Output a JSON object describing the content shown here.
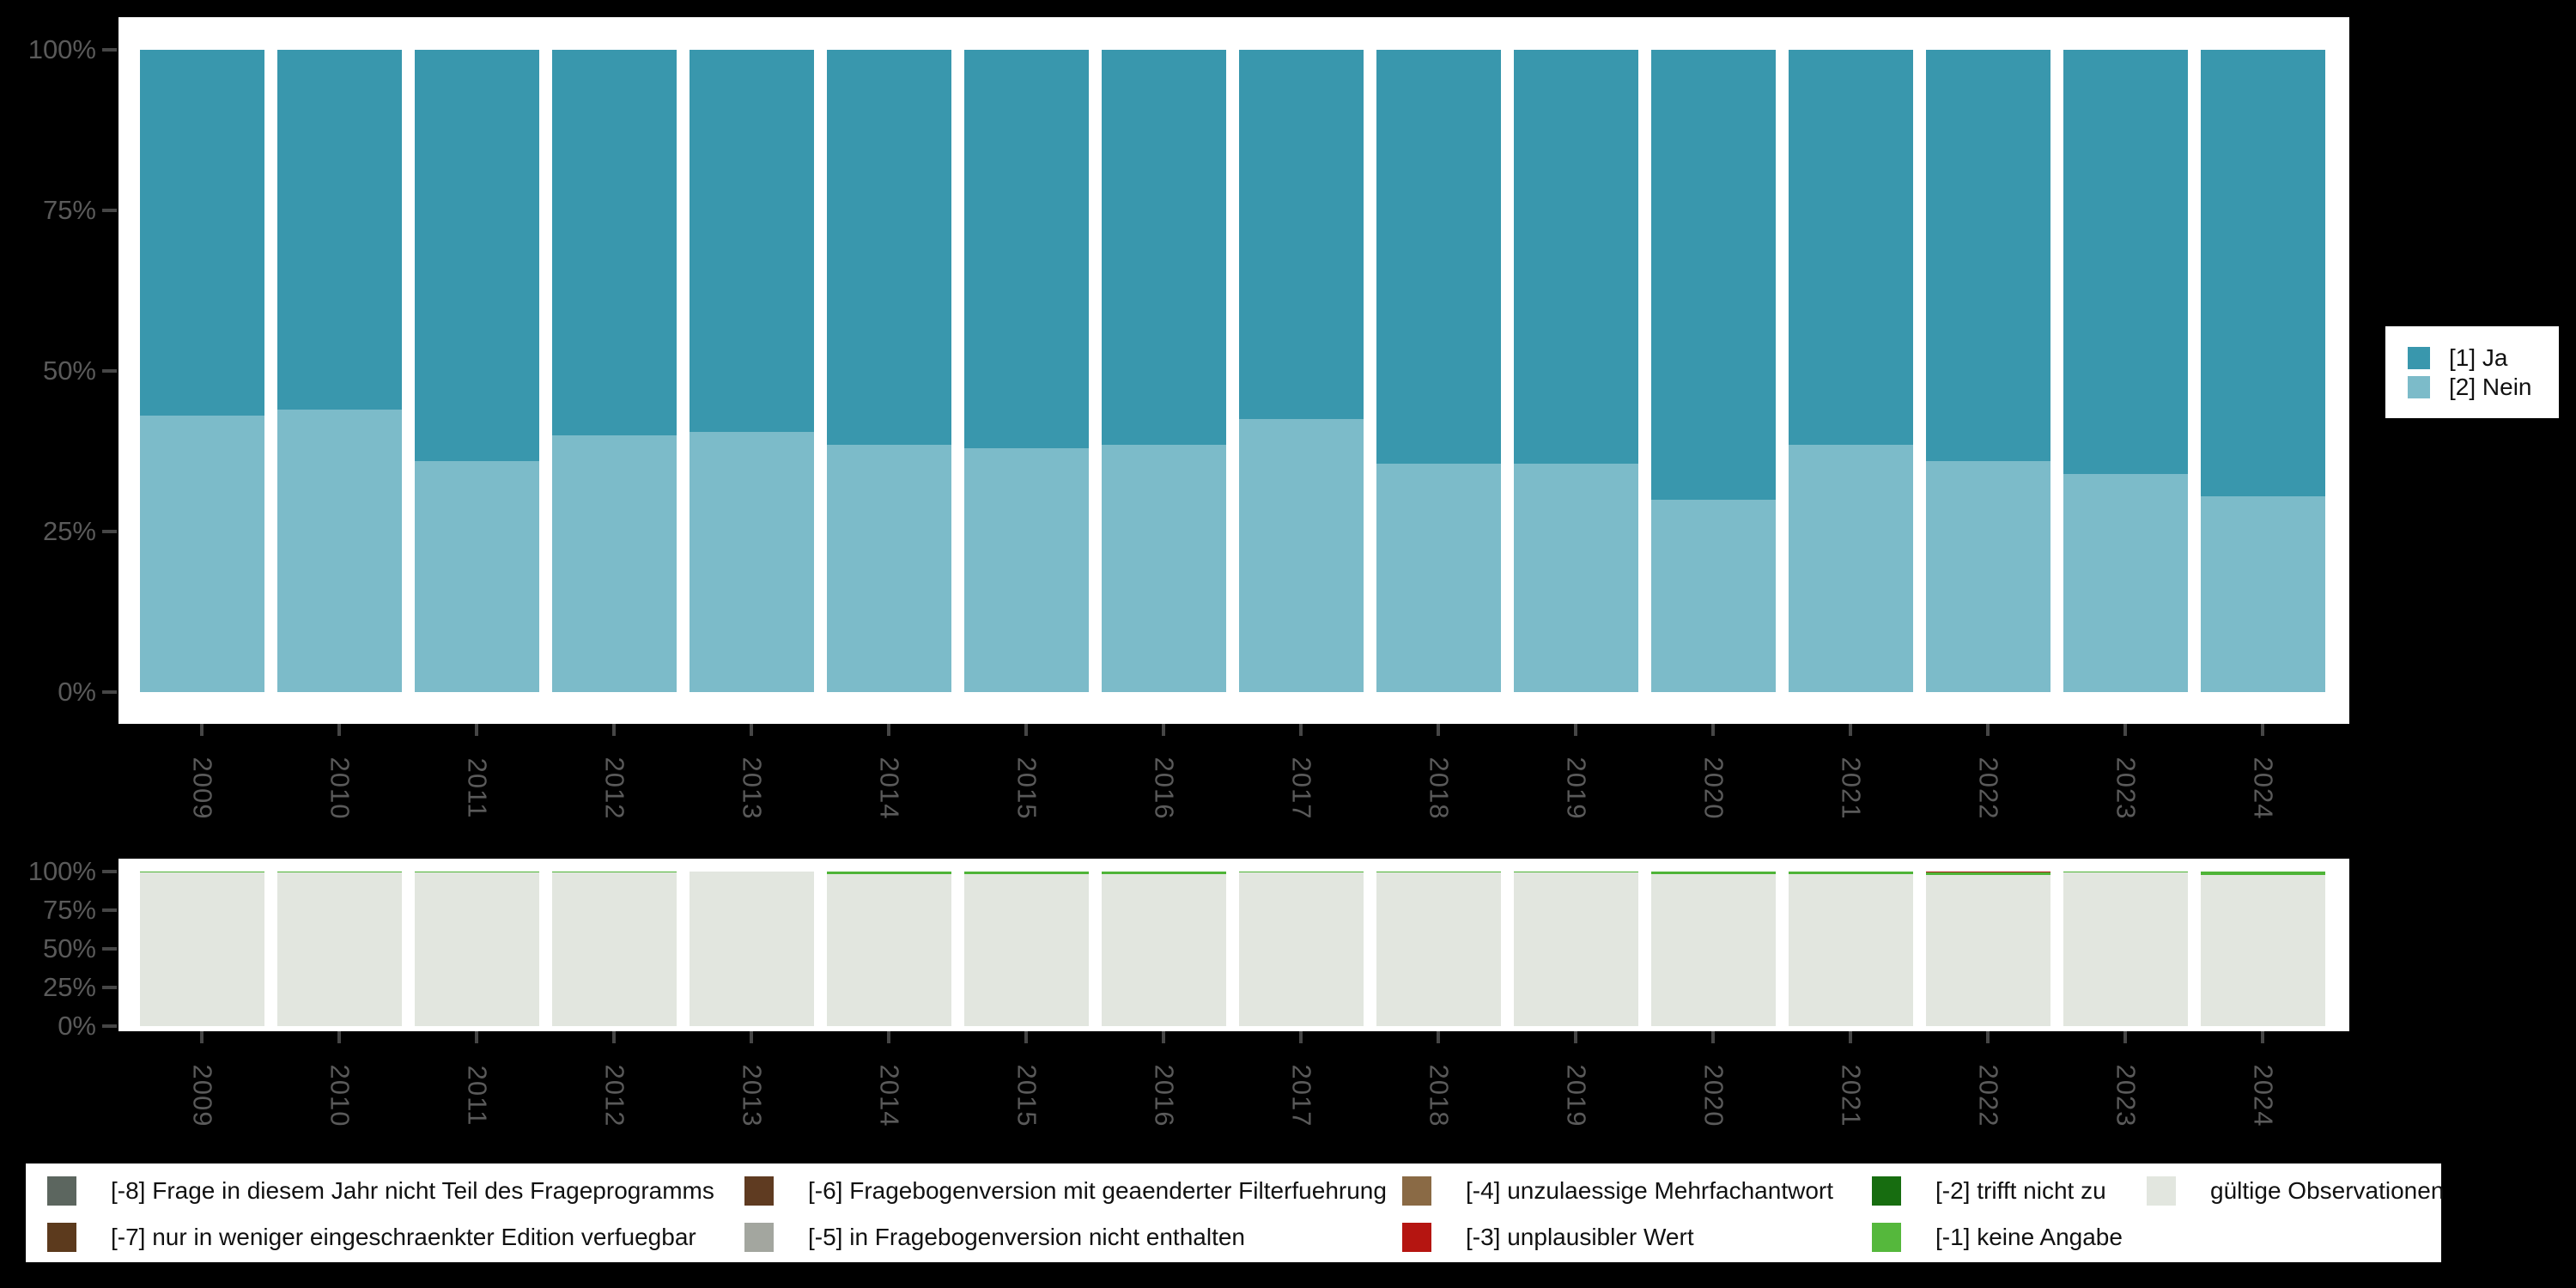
{
  "page": {
    "background": "#000000",
    "panel_background": "#ffffff"
  },
  "axis": {
    "text_color": "#5a5a5a",
    "tick_color": "#464646",
    "ytick_labels": [
      "100%",
      "75%",
      "50%",
      "25%",
      "0%"
    ],
    "ytick_values": [
      100,
      75,
      50,
      25,
      0
    ],
    "years": [
      "2009",
      "2010",
      "2011",
      "2012",
      "2013",
      "2014",
      "2015",
      "2016",
      "2017",
      "2018",
      "2019",
      "2020",
      "2021",
      "2022",
      "2023",
      "2024"
    ]
  },
  "chart_data": [
    {
      "type": "bar",
      "variant": "stacked-percent",
      "title": "",
      "xlabel": "",
      "ylabel": "",
      "ylim": [
        0,
        100
      ],
      "grid": false,
      "legend_position": "right",
      "categories": [
        "2009",
        "2010",
        "2011",
        "2012",
        "2013",
        "2014",
        "2015",
        "2016",
        "2017",
        "2018",
        "2019",
        "2020",
        "2021",
        "2022",
        "2023",
        "2024"
      ],
      "series": [
        {
          "name": "[2] Nein",
          "color": "#7cbbc9",
          "values": [
            43,
            44,
            36,
            40,
            40.5,
            38.5,
            38,
            38.5,
            42.5,
            35.5,
            35.5,
            30,
            38.5,
            36,
            34,
            30.5
          ]
        },
        {
          "name": "[1] Ja",
          "color": "#3997ad",
          "values": [
            57,
            56,
            64,
            60,
            59.5,
            61.5,
            62,
            61.5,
            57.5,
            64.5,
            64.5,
            70,
            61.5,
            64,
            66,
            69.5
          ]
        }
      ]
    },
    {
      "type": "bar",
      "variant": "stacked-percent",
      "title": "",
      "xlabel": "",
      "ylabel": "",
      "ylim": [
        0,
        100
      ],
      "grid": false,
      "legend_position": "bottom",
      "categories": [
        "2009",
        "2010",
        "2011",
        "2012",
        "2013",
        "2014",
        "2015",
        "2016",
        "2017",
        "2018",
        "2019",
        "2020",
        "2021",
        "2022",
        "2023",
        "2024"
      ],
      "series": [
        {
          "name": "gültige Observationen",
          "color": "#e2e6df",
          "values": [
            99.4,
            99.4,
            99.4,
            99.5,
            100,
            98.4,
            98.4,
            98.5,
            99.5,
            99.6,
            99.5,
            98.6,
            98.5,
            98.0,
            99.3,
            97.8
          ]
        },
        {
          "name": "[-1] keine Angabe",
          "color": "#4eb437",
          "values": [
            0.6,
            0.6,
            0.6,
            0.5,
            0,
            1.6,
            1.6,
            1.5,
            0.5,
            0.4,
            0.5,
            1.4,
            1.5,
            1.2,
            0.7,
            2.2
          ]
        },
        {
          "name": "[-3] unplausibler Wert",
          "color": "#a81a10",
          "values": [
            0,
            0,
            0,
            0,
            0,
            0,
            0,
            0,
            0,
            0,
            0,
            0,
            0,
            0.8,
            0,
            0
          ]
        }
      ]
    }
  ],
  "response_legend": {
    "items": [
      {
        "label": "[1] Ja",
        "color": "#3997ad"
      },
      {
        "label": "[2] Nein",
        "color": "#7cbbc9"
      }
    ]
  },
  "missing_legend": {
    "items": [
      {
        "label": "[-8] Frage in diesem Jahr nicht Teil des Frageprogramms",
        "color": "#5c665f",
        "col": 0,
        "row": 0
      },
      {
        "label": "[-7] nur in weniger eingeschraenkter Edition verfuegbar",
        "color": "#5c3a1d",
        "col": 0,
        "row": 1
      },
      {
        "label": "[-6] Fragebogenversion mit geaenderter Filterfuehrung",
        "color": "#5f3b21",
        "col": 1,
        "row": 0
      },
      {
        "label": "[-5] in Fragebogenversion nicht enthalten",
        "color": "#a3a69f",
        "col": 1,
        "row": 1
      },
      {
        "label": "[-4] unzulaessige Mehrfachantwort",
        "color": "#8a6a45",
        "col": 2,
        "row": 0
      },
      {
        "label": "[-3] unplausibler Wert",
        "color": "#b51511",
        "col": 2,
        "row": 1
      },
      {
        "label": "[-2] trifft nicht zu",
        "color": "#176d10",
        "col": 3,
        "row": 0
      },
      {
        "label": "[-1] keine Angabe",
        "color": "#55b83c",
        "col": 3,
        "row": 1
      },
      {
        "label": "gültige Observationen",
        "color": "#e2e6df",
        "col": 4,
        "row": 0
      }
    ]
  }
}
